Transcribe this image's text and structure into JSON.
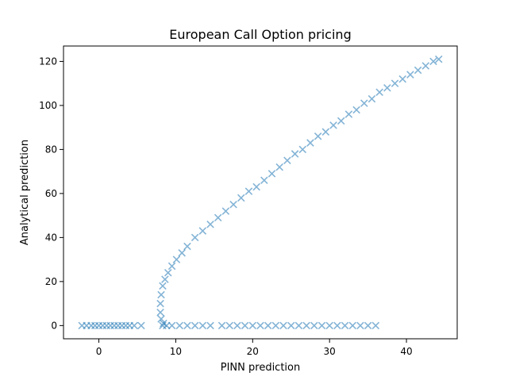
{
  "chart_data": {
    "type": "scatter",
    "title": "European Call Option pricing",
    "xlabel": "PINN prediction",
    "ylabel": "Analytical prediction",
    "xlim": [
      -4.6,
      46.6
    ],
    "ylim": [
      -6.0,
      127.0
    ],
    "xticks": [
      0,
      10,
      20,
      30,
      40
    ],
    "yticks": [
      0,
      20,
      40,
      60,
      80,
      100,
      120
    ],
    "grid": false,
    "marker": "x",
    "colors": {
      "series": "#1f77b4"
    },
    "series": [
      {
        "name": "",
        "points": [
          [
            -2.2,
            0
          ],
          [
            -1.6,
            0
          ],
          [
            -1.0,
            0
          ],
          [
            -0.5,
            0
          ],
          [
            0.0,
            0
          ],
          [
            0.5,
            0
          ],
          [
            1.0,
            0
          ],
          [
            1.5,
            0
          ],
          [
            2.0,
            0
          ],
          [
            2.5,
            0
          ],
          [
            3.0,
            0
          ],
          [
            3.5,
            0
          ],
          [
            4.0,
            0
          ],
          [
            4.6,
            0
          ],
          [
            5.5,
            0
          ],
          [
            8.3,
            0
          ],
          [
            8.8,
            0
          ],
          [
            9.5,
            0
          ],
          [
            10.5,
            0
          ],
          [
            11.5,
            0
          ],
          [
            12.5,
            0
          ],
          [
            13.5,
            0
          ],
          [
            14.5,
            0
          ],
          [
            16.0,
            0
          ],
          [
            17.0,
            0
          ],
          [
            18.0,
            0
          ],
          [
            19.0,
            0
          ],
          [
            20.0,
            0
          ],
          [
            21.0,
            0
          ],
          [
            22.0,
            0
          ],
          [
            23.0,
            0
          ],
          [
            24.0,
            0
          ],
          [
            25.0,
            0
          ],
          [
            26.0,
            0
          ],
          [
            27.0,
            0
          ],
          [
            28.0,
            0
          ],
          [
            29.0,
            0
          ],
          [
            30.0,
            0
          ],
          [
            31.0,
            0
          ],
          [
            32.0,
            0
          ],
          [
            33.0,
            0
          ],
          [
            34.0,
            0
          ],
          [
            35.0,
            0
          ],
          [
            36.0,
            0
          ],
          [
            8.4,
            1
          ],
          [
            8.1,
            3
          ],
          [
            8.0,
            6
          ],
          [
            8.0,
            10
          ],
          [
            8.1,
            14
          ],
          [
            8.3,
            18
          ],
          [
            8.6,
            21
          ],
          [
            9.0,
            24
          ],
          [
            9.5,
            27
          ],
          [
            10.1,
            30
          ],
          [
            10.8,
            33
          ],
          [
            11.5,
            36
          ],
          [
            12.5,
            40
          ],
          [
            13.5,
            43
          ],
          [
            14.5,
            46
          ],
          [
            15.5,
            49
          ],
          [
            16.5,
            52
          ],
          [
            17.5,
            55
          ],
          [
            18.5,
            58
          ],
          [
            19.5,
            61
          ],
          [
            20.5,
            63
          ],
          [
            21.5,
            66
          ],
          [
            22.5,
            69
          ],
          [
            23.5,
            72
          ],
          [
            24.5,
            75
          ],
          [
            25.5,
            78
          ],
          [
            26.5,
            80
          ],
          [
            27.5,
            83
          ],
          [
            28.5,
            86
          ],
          [
            29.5,
            88
          ],
          [
            30.5,
            91
          ],
          [
            31.5,
            93
          ],
          [
            32.5,
            96
          ],
          [
            33.5,
            98
          ],
          [
            34.5,
            101
          ],
          [
            35.5,
            103
          ],
          [
            36.5,
            106
          ],
          [
            37.5,
            108
          ],
          [
            38.5,
            110
          ],
          [
            39.5,
            112
          ],
          [
            40.5,
            114
          ],
          [
            41.5,
            116
          ],
          [
            42.5,
            118
          ],
          [
            43.5,
            120
          ],
          [
            44.2,
            121
          ]
        ]
      }
    ]
  }
}
